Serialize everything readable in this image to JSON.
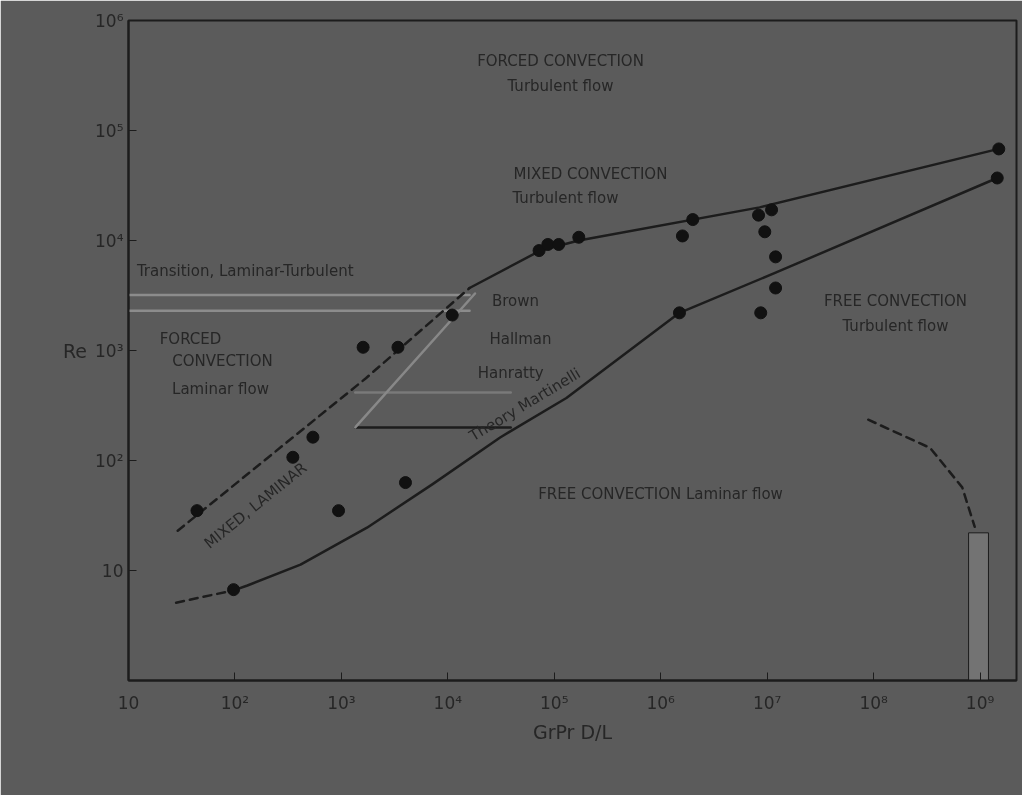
{
  "chart_data": {
    "type": "line",
    "xlabel": "GrPr D/L",
    "ylabel": "Re",
    "log": "xy",
    "grid": false,
    "xlim": [
      10,
      2200000000.0
    ],
    "ylim": [
      1,
      1000000.0
    ],
    "xticks": [
      10,
      {
        "value": 100,
        "label": "10²"
      },
      {
        "value": 1000,
        "label": "10³"
      },
      {
        "value": 10000,
        "label": "10⁴"
      },
      {
        "value": 100000,
        "label": "10⁵"
      },
      {
        "value": 1000000,
        "label": "10⁶"
      },
      {
        "value": 10000000,
        "label": "10⁷"
      },
      {
        "value": 100000000,
        "label": "10⁸"
      },
      {
        "value": 1000000000,
        "label": "10⁹"
      }
    ],
    "yticks": [
      10,
      {
        "value": 100,
        "label": "10²"
      },
      {
        "value": 1000,
        "label": "10³"
      },
      {
        "value": 10000,
        "label": "10⁴"
      },
      {
        "value": 100000,
        "label": "10⁵"
      },
      {
        "value": 1000000,
        "label": "10⁶"
      }
    ],
    "series": [
      {
        "color": "#8c8c8c",
        "line_style": "solid",
        "x": [
          10,
          16000
        ],
        "values": [
          3200,
          3200
        ]
      },
      {
        "color": "#8c8c8c",
        "line_style": "solid",
        "x": [
          10,
          16000
        ],
        "values": [
          2300,
          2300
        ]
      },
      {
        "color": "#7a7a7a",
        "line_style": "solid",
        "x": [
          1350,
          39000
        ],
        "values": [
          415,
          415
        ]
      },
      {
        "color": "#1c1c1c",
        "line_style": "solid",
        "x": [
          1350,
          39000
        ],
        "values": [
          200,
          200
        ]
      },
      {
        "type": "area",
        "color": "#767676",
        "x": [
          780000000,
          1200000000
        ],
        "values": [
          22,
          22
        ]
      },
      {
        "color": "#888888",
        "line_style": "solid",
        "x": [
          1350,
          18000
        ],
        "values": [
          200,
          3300
        ]
      },
      {
        "color": "#1c1c1c",
        "line_style": "solid",
        "x": [
          16000,
          74000,
          170000,
          8500000,
          1400000000
        ],
        "values": [
          3700,
          8100,
          10000,
          20000,
          67000
        ]
      },
      {
        "color": "#1c1c1c",
        "line_style": "dashed",
        "x": [
          29,
          1700,
          16000
        ],
        "values": [
          23,
          560,
          3700
        ]
      },
      {
        "color": "#1c1c1c",
        "line_style": "dashed",
        "x": [
          28,
          97
        ],
        "values": [
          5.1,
          6.6
        ]
      },
      {
        "color": "#1c1c1c",
        "line_style": "solid",
        "x": [
          97,
          131,
          413,
          1740,
          7200,
          31000,
          130000,
          1500000,
          12000000,
          1450000000
        ],
        "values": [
          6.6,
          7.3,
          11.3,
          24.5,
          61,
          162,
          370,
          2200,
          5100,
          37000
        ]
      },
      {
        "color": "#1c1c1c",
        "line_style": "dashed",
        "x": [
          89000000,
          340000000,
          680000000,
          890000000
        ],
        "values": [
          235,
          130,
          57,
          25
        ]
      },
      {
        "type": "scatter",
        "marker": "circle",
        "color": "#111111",
        "x": [
          44,
          350,
          540,
          940,
          4000,
          97,
          1600,
          3400,
          11000,
          72000,
          87000,
          110000,
          170000,
          1600000,
          2000000,
          8300000,
          11000000,
          9500000,
          12000000,
          12000000,
          8700000,
          1500000,
          1500000000,
          1450000000
        ],
        "values": [
          35,
          107,
          163,
          35,
          63,
          6.7,
          1070,
          1070,
          2100,
          8100,
          9200,
          9200,
          10700,
          11000,
          15500,
          17000,
          19000,
          12000,
          7100,
          3700,
          2200,
          2200,
          68000,
          37000
        ]
      }
    ],
    "annotations": [
      "FORCED CONVECTION",
      "Turbulent flow",
      "MIXED CONVECTION",
      "Turbulent flow",
      {
        "text": "Transition, Laminar-Turbulent",
        "x": 125,
        "y": 3200
      },
      "FORCED",
      "CONVECTION",
      "Laminar flow",
      "Brown",
      "Hallman",
      {
        "text": "Hanratty",
        "x": 39000,
        "y": 415
      },
      {
        "text": "Theory Martinelli",
        "x": 59000,
        "y": 240
      },
      "MIXED, LAMINAR",
      "FREE CONVECTION",
      "Turbulent flow",
      "FREE CONVECTION Laminar flow"
    ]
  }
}
